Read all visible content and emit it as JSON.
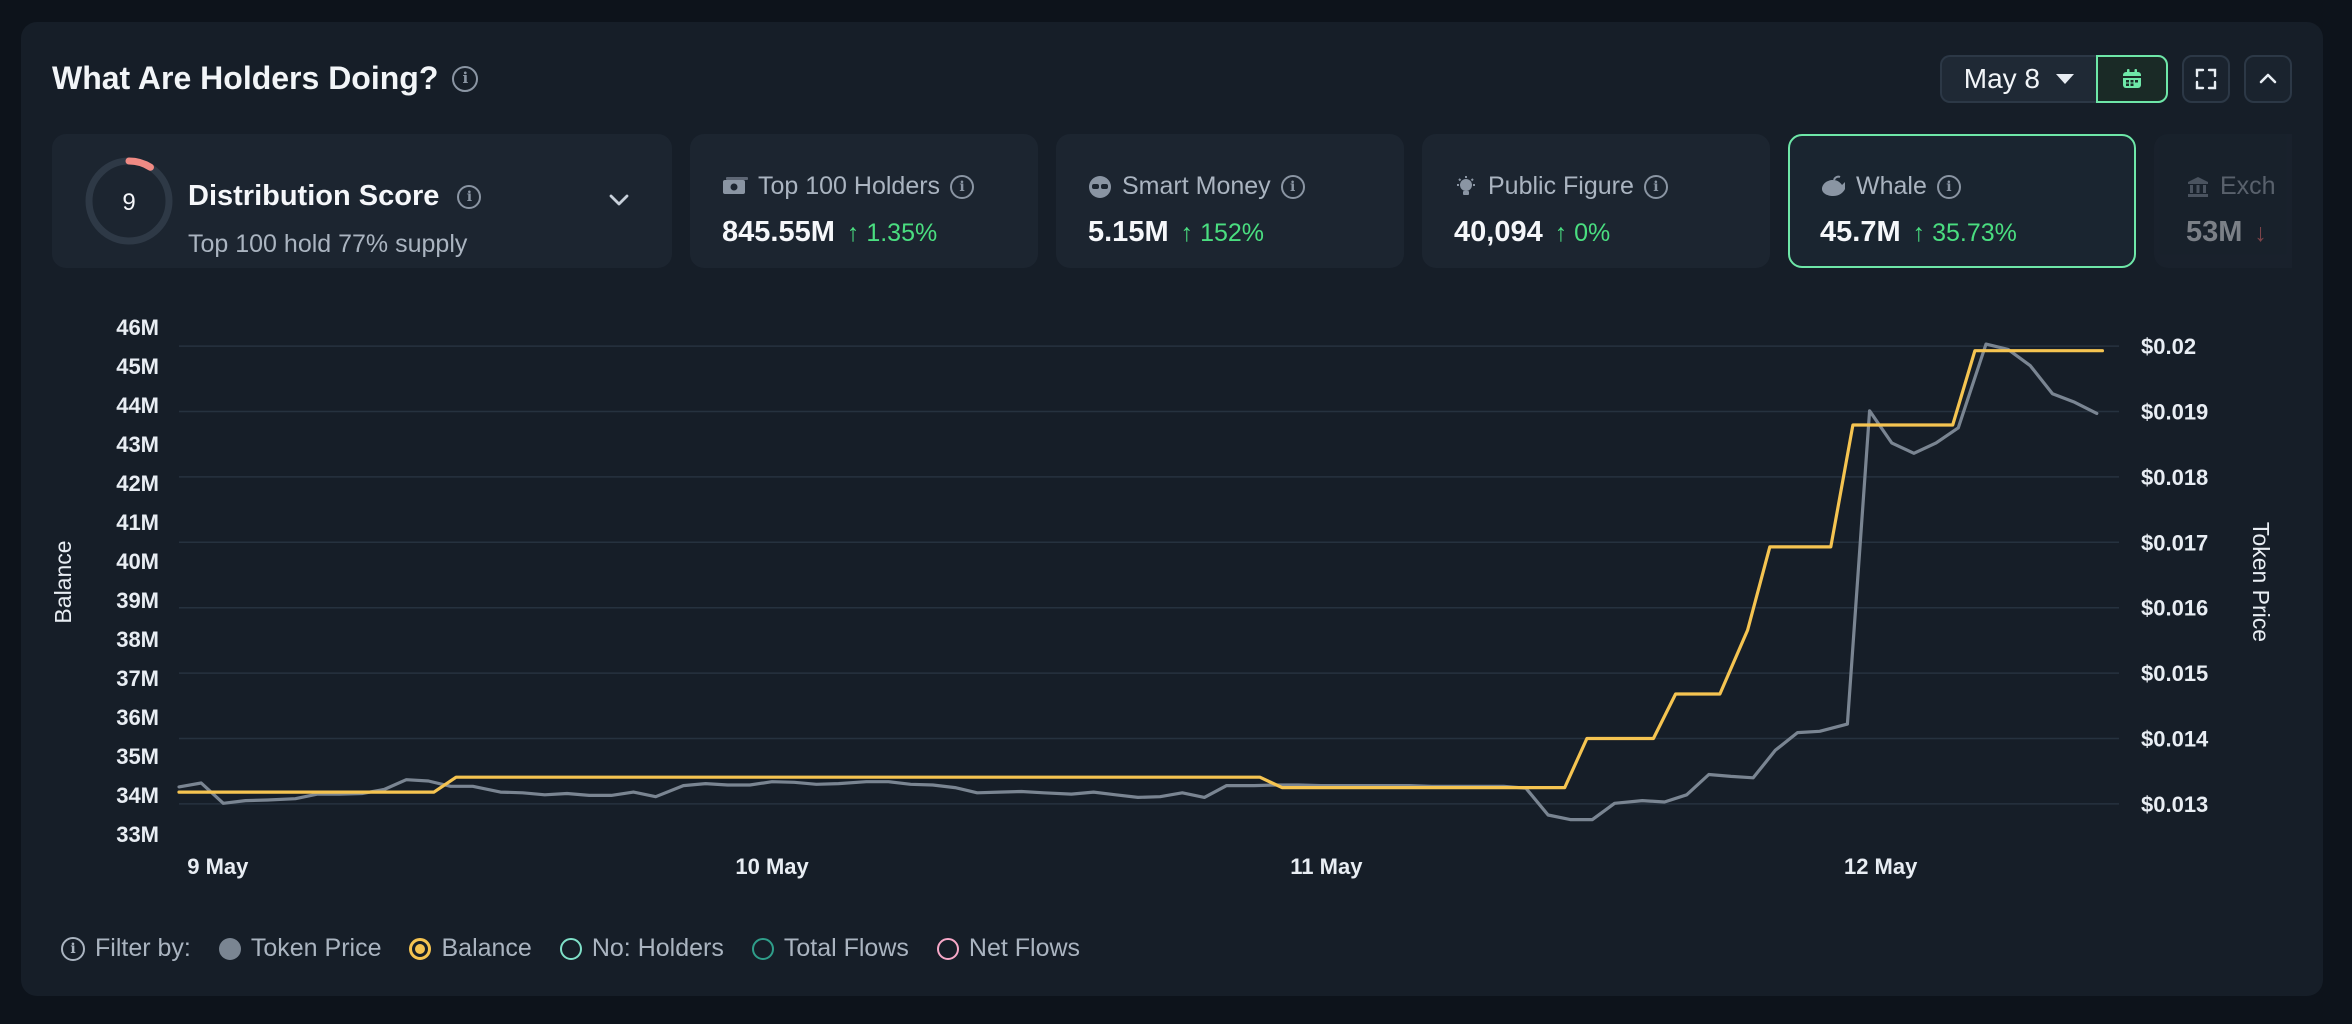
{
  "header": {
    "title": "What Are Holders Doing?",
    "date_label": "May 8"
  },
  "distribution": {
    "score": "9",
    "title": "Distribution Score",
    "subtitle": "Top 100 hold 77% supply",
    "score_fraction": 0.09
  },
  "cards": [
    {
      "label": "Top 100 Holders",
      "value": "845.55M",
      "change": "1.35%",
      "direction": "up",
      "icon": "money-icon"
    },
    {
      "label": "Smart Money",
      "value": "5.15M",
      "change": "152%",
      "direction": "up",
      "icon": "sunglasses-icon"
    },
    {
      "label": "Public Figure",
      "value": "40,094",
      "change": "0%",
      "direction": "up",
      "icon": "lightbulb-icon"
    },
    {
      "label": "Whale",
      "value": "45.7M",
      "change": "35.73%",
      "direction": "up",
      "icon": "whale-icon",
      "active": true
    },
    {
      "label": "Exch",
      "value": "53M",
      "change": "",
      "direction": "down",
      "icon": "bank-icon"
    }
  ],
  "legend": {
    "filter_label": "Filter by:",
    "items": [
      {
        "label": "Token Price",
        "color": "#7a8592",
        "filled": true
      },
      {
        "label": "Balance",
        "color": "#f5c451",
        "filled": "ring-dot"
      },
      {
        "label": "No: Holders",
        "color": "#7fe0c8",
        "filled": false
      },
      {
        "label": "Total Flows",
        "color": "#2f9e8a",
        "filled": false
      },
      {
        "label": "Net Flows",
        "color": "#f7a8c8",
        "filled": false
      }
    ]
  },
  "chart_data": {
    "type": "line",
    "left_axis": {
      "label": "Balance",
      "ticks": [
        "33M",
        "34M",
        "35M",
        "36M",
        "37M",
        "38M",
        "39M",
        "40M",
        "41M",
        "42M",
        "43M",
        "44M",
        "45M",
        "46M"
      ]
    },
    "right_axis": {
      "label": "Token Price",
      "ticks": [
        "$0.013",
        "$0.014",
        "$0.015",
        "$0.016",
        "$0.017",
        "$0.018",
        "$0.019",
        "$0.02"
      ],
      "ylim": [
        0.0128,
        0.0202
      ]
    },
    "x_ticks": [
      "9 May",
      "10 May",
      "11 May",
      "12 May"
    ],
    "x_tick_values": [
      0.07,
      1.07,
      2.07,
      3.07
    ],
    "xlim": [
      0,
      3.5
    ],
    "grid": true,
    "series": [
      {
        "name": "Token Price",
        "color": "#7a8592",
        "points": [
          [
            0.0,
            0.01326
          ],
          [
            0.04,
            0.01332
          ],
          [
            0.08,
            0.01301
          ],
          [
            0.12,
            0.01305
          ],
          [
            0.16,
            0.01306
          ],
          [
            0.21,
            0.01308
          ],
          [
            0.25,
            0.01315
          ],
          [
            0.29,
            0.01315
          ],
          [
            0.33,
            0.01316
          ],
          [
            0.37,
            0.01322
          ],
          [
            0.41,
            0.01337
          ],
          [
            0.45,
            0.01335
          ],
          [
            0.49,
            0.01327
          ],
          [
            0.53,
            0.01327
          ],
          [
            0.58,
            0.01318
          ],
          [
            0.62,
            0.01317
          ],
          [
            0.66,
            0.01314
          ],
          [
            0.7,
            0.01316
          ],
          [
            0.74,
            0.01313
          ],
          [
            0.78,
            0.01313
          ],
          [
            0.82,
            0.01318
          ],
          [
            0.86,
            0.01311
          ],
          [
            0.91,
            0.01328
          ],
          [
            0.95,
            0.01331
          ],
          [
            0.99,
            0.01329
          ],
          [
            1.03,
            0.01329
          ],
          [
            1.07,
            0.01334
          ],
          [
            1.11,
            0.01333
          ],
          [
            1.15,
            0.0133
          ],
          [
            1.19,
            0.01331
          ],
          [
            1.24,
            0.01334
          ],
          [
            1.28,
            0.01334
          ],
          [
            1.32,
            0.0133
          ],
          [
            1.36,
            0.01329
          ],
          [
            1.4,
            0.01325
          ],
          [
            1.44,
            0.01317
          ],
          [
            1.48,
            0.01318
          ],
          [
            1.52,
            0.01319
          ],
          [
            1.56,
            0.01317
          ],
          [
            1.61,
            0.01315
          ],
          [
            1.65,
            0.01318
          ],
          [
            1.69,
            0.01314
          ],
          [
            1.73,
            0.0131
          ],
          [
            1.77,
            0.01311
          ],
          [
            1.81,
            0.01317
          ],
          [
            1.85,
            0.0131
          ],
          [
            1.89,
            0.01328
          ],
          [
            1.94,
            0.01328
          ],
          [
            1.98,
            0.01329
          ],
          [
            2.02,
            0.01329
          ],
          [
            2.06,
            0.01328
          ],
          [
            2.1,
            0.01328
          ],
          [
            2.14,
            0.01328
          ],
          [
            2.18,
            0.01328
          ],
          [
            2.22,
            0.01328
          ],
          [
            2.26,
            0.01327
          ],
          [
            2.31,
            0.01327
          ],
          [
            2.35,
            0.01327
          ],
          [
            2.39,
            0.01327
          ],
          [
            2.43,
            0.01324
          ],
          [
            2.47,
            0.01283
          ],
          [
            2.51,
            0.01276
          ],
          [
            2.55,
            0.01276
          ],
          [
            2.59,
            0.01301
          ],
          [
            2.64,
            0.01305
          ],
          [
            2.68,
            0.01303
          ],
          [
            2.72,
            0.01314
          ],
          [
            2.76,
            0.01345
          ],
          [
            2.8,
            0.01342
          ],
          [
            2.84,
            0.0134
          ],
          [
            2.88,
            0.01382
          ],
          [
            2.92,
            0.01409
          ],
          [
            2.96,
            0.01411
          ],
          [
            3.01,
            0.01422
          ],
          [
            3.05,
            0.01901
          ],
          [
            3.09,
            0.01852
          ],
          [
            3.13,
            0.01836
          ],
          [
            3.17,
            0.01852
          ],
          [
            3.21,
            0.01875
          ],
          [
            3.26,
            0.02003
          ],
          [
            3.3,
            0.01995
          ],
          [
            3.34,
            0.0197
          ],
          [
            3.38,
            0.01927
          ],
          [
            3.42,
            0.01914
          ],
          [
            3.46,
            0.01897
          ]
        ]
      },
      {
        "name": "Balance",
        "color": "#f5c451",
        "points": [
          [
            0.0,
            0.013181
          ],
          [
            0.46,
            0.013181
          ],
          [
            0.5,
            0.013408
          ],
          [
            1.95,
            0.013408
          ],
          [
            1.99,
            0.013249
          ],
          [
            2.5,
            0.013249
          ],
          [
            2.54,
            0.014
          ],
          [
            2.66,
            0.014
          ],
          [
            2.7,
            0.014681
          ],
          [
            2.78,
            0.014681
          ],
          [
            2.83,
            0.015658
          ],
          [
            2.87,
            0.01693
          ],
          [
            2.98,
            0.01693
          ],
          [
            3.02,
            0.018793
          ],
          [
            3.2,
            0.018793
          ],
          [
            3.24,
            0.01993
          ],
          [
            3.47,
            0.01993
          ]
        ]
      }
    ]
  }
}
